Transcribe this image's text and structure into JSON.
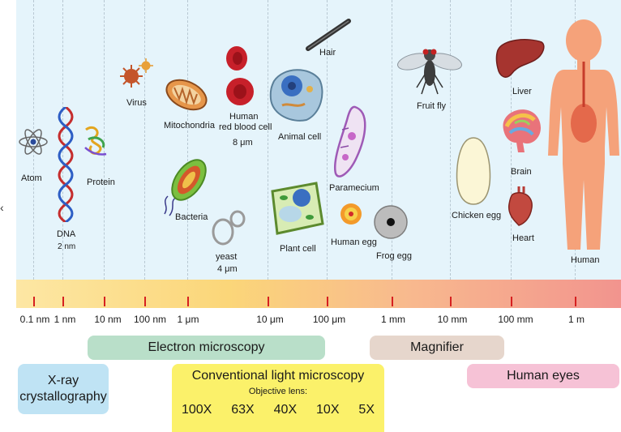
{
  "objects": {
    "atom": "Atom",
    "dna": "DNA",
    "dna_size": "2 nm",
    "protein": "Protein",
    "virus": "Virus",
    "mitochondria": "Mitochondria",
    "bacteria": "Bacteria",
    "rbc_line1": "Human",
    "rbc_line2": "red blood cell",
    "rbc_size": "8 μm",
    "yeast": "yeast",
    "yeast_size": "4 μm",
    "animal_cell": "Animal cell",
    "plant_cell": "Plant cell",
    "hair": "Hair",
    "paramecium": "Paramecium",
    "human_egg": "Human egg",
    "frog_egg": "Frog egg",
    "fruit_fly": "Fruit fly",
    "chicken_egg": "Chicken egg",
    "liver": "Liver",
    "brain": "Brain",
    "heart": "Heart",
    "human": "Human"
  },
  "scale_ticks": [
    "0.1 nm",
    "1 nm",
    "10 nm",
    "100 nm",
    "1 μm",
    "10 μm",
    "100 μm",
    "1 mm",
    "10 mm",
    "100 mm",
    "1 m"
  ],
  "methods": {
    "electron": "Electron microscopy",
    "magnifier": "Magnifier",
    "xray_line1": "X-ray",
    "xray_line2": "crystallography",
    "light": "Conventional light microscopy",
    "objective": "Objective lens:",
    "lenses": [
      "100X",
      "63X",
      "40X",
      "10X",
      "5X"
    ],
    "eyes": "Human eyes"
  },
  "colors": {
    "electron": "#b9dfc9",
    "magnifier": "#e6d6cc",
    "xray": "#bfe3f4",
    "light": "#fbf16a",
    "eyes": "#f6c2d6",
    "tick": "#d62020"
  }
}
